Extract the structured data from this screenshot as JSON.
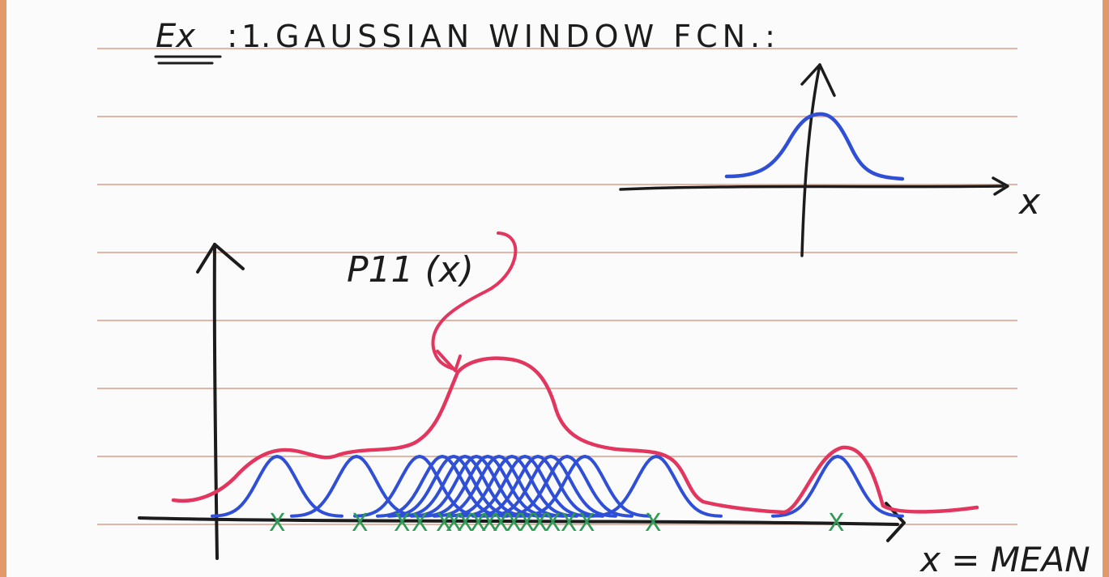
{
  "title": {
    "prefix": "Ex",
    "separator": ":",
    "number": "1.",
    "text": "GAUSSIAN WINDOW FCN.:"
  },
  "inset_plot": {
    "x_label": "x"
  },
  "main_plot": {
    "curve_label": "P11 (x)",
    "x_label": "x = MEAN",
    "sample_marker": "X",
    "sample_count": 18
  },
  "colors": {
    "paper": "#fbfbfb",
    "margin_border": "#e39a6a",
    "rule_lines": "#d9a08a",
    "ink": "#1c1c1c",
    "red_pen": "#e2365f",
    "blue_pen": "#2f4fd6",
    "green_pen": "#2f9a55"
  }
}
